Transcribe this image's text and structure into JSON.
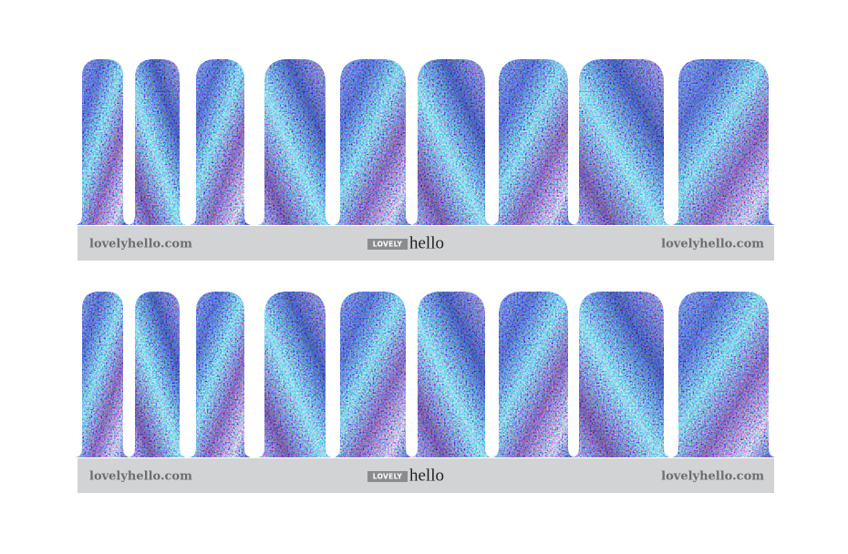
{
  "sheets": [
    {
      "left_url": "lovelyhello.com",
      "logo_box": "LOVELY",
      "logo_word": "hello",
      "right_url": "lovelyhello.com"
    },
    {
      "left_url": "lovelyhello.com",
      "logo_box": "LOVELY",
      "logo_word": "hello",
      "right_url": "lovelyhello.com"
    }
  ]
}
